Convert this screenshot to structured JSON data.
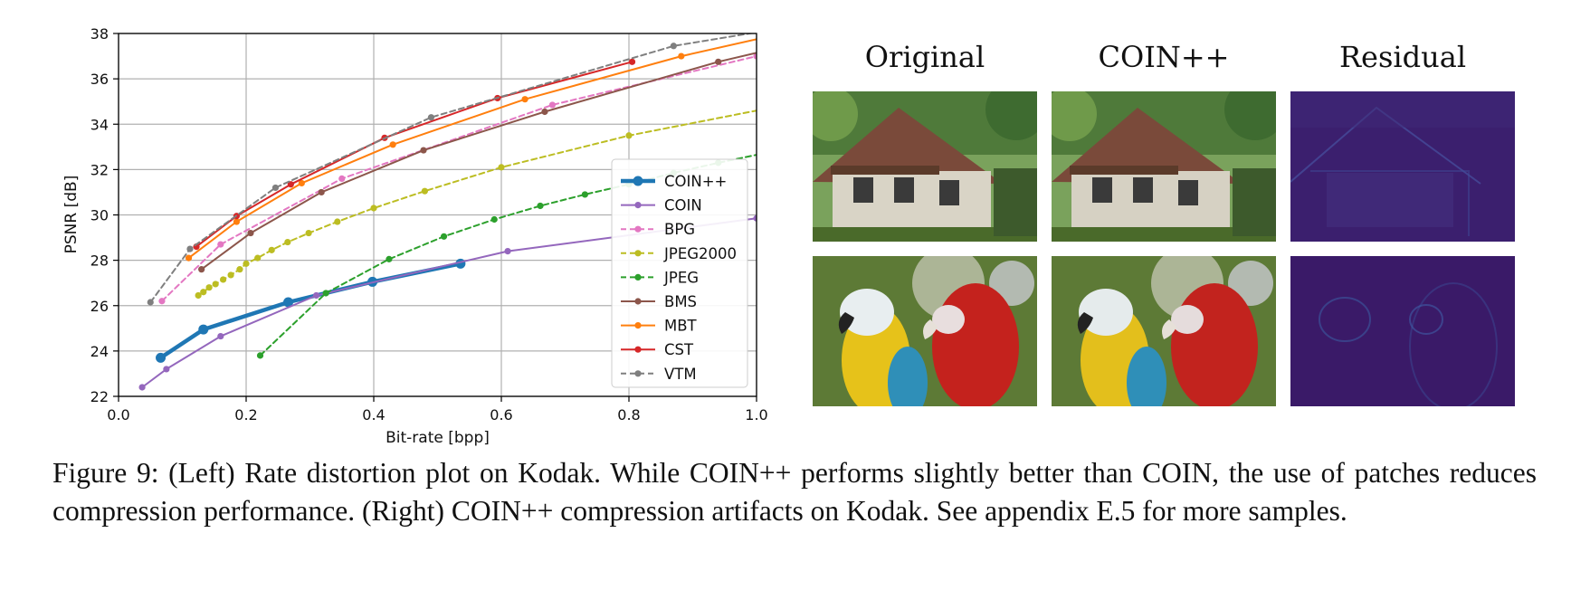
{
  "chart_data": {
    "type": "line",
    "xlabel": "Bit-rate [bpp]",
    "ylabel": "PSNR [dB]",
    "xlim": [
      0.0,
      1.0
    ],
    "ylim": [
      22,
      38
    ],
    "xticks": [
      "0.0",
      "0.2",
      "0.4",
      "0.6",
      "0.8",
      "1.0"
    ],
    "yticks": [
      "22",
      "24",
      "26",
      "28",
      "30",
      "32",
      "34",
      "36",
      "38"
    ],
    "grid": true,
    "legend_position": "right",
    "series": [
      {
        "name": "COIN++",
        "color": "#1f77b4",
        "dash": "solid",
        "emphasis": true,
        "x": [
          0.066,
          0.133,
          0.266,
          0.398,
          0.536
        ],
        "y": [
          23.7,
          24.95,
          26.15,
          27.05,
          27.85
        ]
      },
      {
        "name": "COIN",
        "color": "#9467bd",
        "dash": "solid",
        "x": [
          0.037,
          0.075,
          0.16,
          0.31,
          0.61,
          1.0
        ],
        "y": [
          22.4,
          23.2,
          24.65,
          26.45,
          28.4,
          29.85
        ]
      },
      {
        "name": "BPG",
        "color": "#e377c2",
        "dash": "dashed",
        "x": [
          0.068,
          0.16,
          0.35,
          0.68,
          1.0
        ],
        "y": [
          26.2,
          28.7,
          31.6,
          34.85,
          37.0
        ]
      },
      {
        "name": "JPEG2000",
        "color": "#bcbd22",
        "dash": "dashed",
        "x": [
          0.125,
          0.133,
          0.142,
          0.152,
          0.164,
          0.176,
          0.19,
          0.2,
          0.218,
          0.24,
          0.265,
          0.298,
          0.343,
          0.4,
          0.48,
          0.6,
          0.8,
          1.0
        ],
        "y": [
          26.45,
          26.6,
          26.8,
          26.95,
          27.15,
          27.35,
          27.6,
          27.85,
          28.1,
          28.45,
          28.8,
          29.2,
          29.7,
          30.3,
          31.05,
          32.1,
          33.5,
          34.6
        ],
        "marker_last": false
      },
      {
        "name": "JPEG",
        "color": "#2ca02c",
        "dash": "dashed",
        "x": [
          0.222,
          0.325,
          0.424,
          0.51,
          0.589,
          0.661,
          0.731,
          0.8,
          0.87,
          0.94,
          1.0
        ],
        "y": [
          23.8,
          26.55,
          28.05,
          29.05,
          29.8,
          30.4,
          30.9,
          31.35,
          31.85,
          32.3,
          32.65
        ],
        "marker_last": false
      },
      {
        "name": "BMS",
        "color": "#8c564b",
        "dash": "solid",
        "x": [
          0.13,
          0.207,
          0.318,
          0.478,
          0.668,
          0.94,
          1.0
        ],
        "y": [
          27.6,
          29.2,
          31.0,
          32.85,
          34.55,
          36.75,
          37.15
        ],
        "marker_last": false
      },
      {
        "name": "MBT",
        "color": "#ff7f0e",
        "dash": "solid",
        "x": [
          0.11,
          0.185,
          0.287,
          0.43,
          0.637,
          0.882,
          1.0
        ],
        "y": [
          28.1,
          29.7,
          31.4,
          33.1,
          35.1,
          37.0,
          37.75
        ],
        "marker_last": false
      },
      {
        "name": "CST",
        "color": "#d62728",
        "dash": "solid",
        "x": [
          0.122,
          0.185,
          0.27,
          0.417,
          0.594,
          0.805
        ],
        "y": [
          28.6,
          29.95,
          31.35,
          33.4,
          35.15,
          36.75
        ]
      },
      {
        "name": "VTM",
        "color": "#7f7f7f",
        "dash": "dashed",
        "x": [
          0.05,
          0.112,
          0.246,
          0.49,
          0.87,
          1.0
        ],
        "y": [
          26.15,
          28.5,
          31.2,
          34.3,
          37.45,
          38.05
        ],
        "marker_last": false
      }
    ]
  },
  "grid_panel": {
    "column_titles": [
      "Original",
      "COIN++",
      "Residual"
    ]
  },
  "caption": "Figure 9: (Left) Rate distortion plot on Kodak. While COIN++ performs slightly better than COIN, the use of patches reduces compression performance. (Right) COIN++ compression artifacts on Kodak. See appendix E.5 for more samples."
}
